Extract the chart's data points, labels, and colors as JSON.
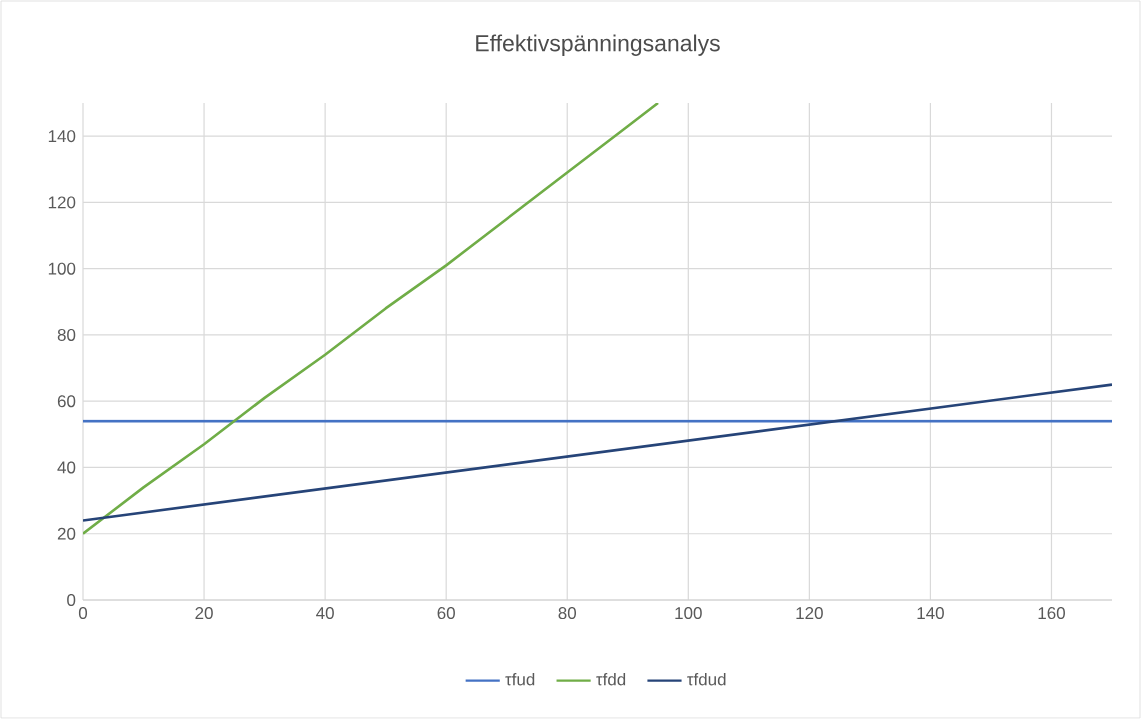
{
  "chart_data": {
    "type": "line",
    "title": "Effektivspänningsanalys",
    "series": [
      {
        "name": "τfud",
        "color": "#4472c4",
        "x": [
          0,
          170
        ],
        "values": [
          54,
          54
        ]
      },
      {
        "name": "τfdd",
        "color": "#70ad47",
        "x": [
          0,
          10,
          20,
          30,
          40,
          50,
          60,
          70,
          80,
          90,
          95
        ],
        "values": [
          20,
          34,
          47,
          61,
          74,
          88,
          101,
          115,
          129,
          143,
          150
        ]
      },
      {
        "name": "τfdud",
        "color": "#264478",
        "x": [
          0,
          170
        ],
        "values": [
          24,
          65
        ]
      }
    ],
    "xlim": [
      0,
      170
    ],
    "ylim": [
      0,
      150
    ],
    "xticks": [
      0,
      20,
      40,
      60,
      80,
      100,
      120,
      140,
      160
    ],
    "yticks": [
      0,
      20,
      40,
      60,
      80,
      100,
      120,
      140
    ],
    "grid": true,
    "legend": "bottom",
    "marker": "none",
    "line_style": "solid"
  }
}
